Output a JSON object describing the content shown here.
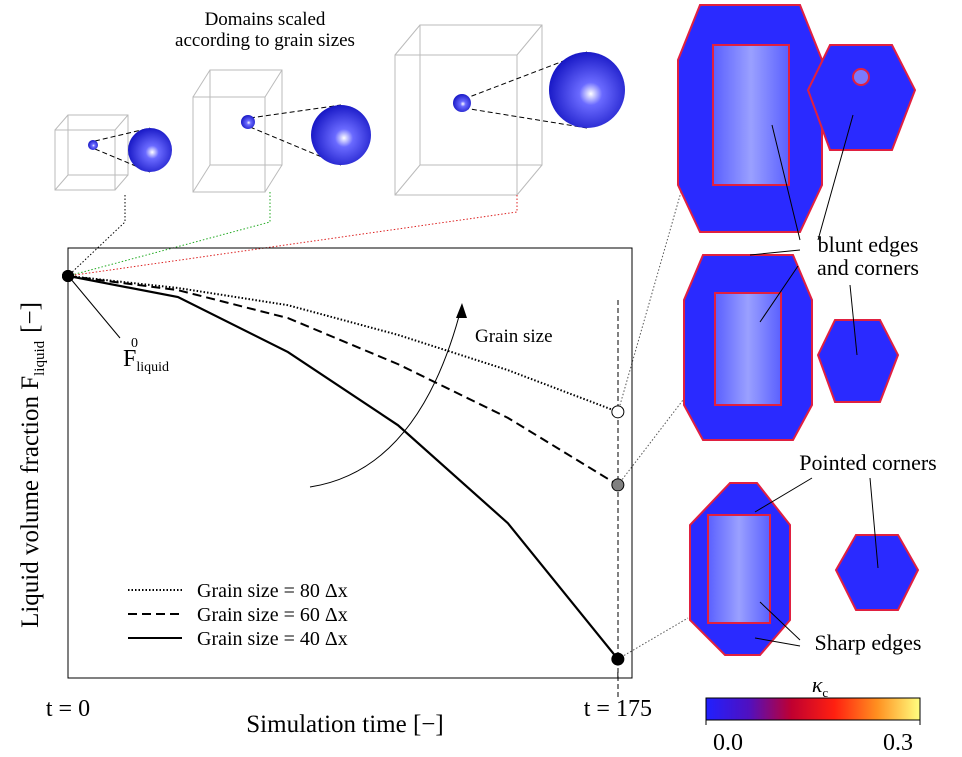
{
  "chart_data": {
    "type": "line",
    "xlabel": "Simulation time [−]",
    "ylabel": {
      "text": "Liquid volume fraction F",
      "sub": "liquid",
      "suffix": "[−]"
    },
    "xlim": [
      0,
      179.5
    ],
    "ylim": [
      0,
      1
    ],
    "xticks": [
      {
        "value": 0,
        "label": "t = 0"
      },
      {
        "value": 175,
        "label": "t = 175"
      }
    ],
    "start_marker_color": "#000000",
    "legend": "lower left",
    "series": [
      {
        "name": "Grain size = 80 Δx",
        "color": "#000000",
        "dash": "dotted",
        "marker_fill": "#ffffff",
        "x": [
          0,
          35,
          70,
          105,
          140,
          175
        ],
        "values": [
          0.935,
          0.907,
          0.867,
          0.798,
          0.716,
          0.619
        ]
      },
      {
        "name": "Grain size = 60 Δx",
        "color": "#000000",
        "dash": "dashed",
        "marker_fill": "#808080",
        "x": [
          0,
          35,
          70,
          105,
          140,
          175
        ],
        "values": [
          0.935,
          0.902,
          0.837,
          0.73,
          0.605,
          0.449
        ]
      },
      {
        "name": "Grain size = 40 Δx",
        "color": "#000000",
        "dash": "solid",
        "marker_fill": "#000000",
        "x": [
          0,
          35,
          70,
          105,
          140,
          175
        ],
        "values": [
          0.935,
          0.886,
          0.758,
          0.588,
          0.36,
          0.044
        ]
      }
    ],
    "annotations": {
      "initial": {
        "base": "F",
        "sub": "liquid",
        "sup": "0"
      },
      "arrow": "Grain size",
      "domains": [
        "Domains scaled",
        "according to grain sizes"
      ],
      "blunt": [
        "blunt edges",
        "and corners"
      ],
      "pointed": "Pointed corners",
      "sharp": "Sharp edges"
    },
    "colorbar": {
      "label": "κ",
      "label_sub": "c",
      "range": [
        0,
        0.3
      ],
      "colors": [
        "#2020ff",
        "#5010c0",
        "#c00030",
        "#ff2010",
        "#ff9020",
        "#ffff80"
      ],
      "ticks": [
        {
          "value": 0,
          "label": "0.0"
        },
        {
          "value": 0.3,
          "label": "0.3"
        }
      ]
    }
  }
}
